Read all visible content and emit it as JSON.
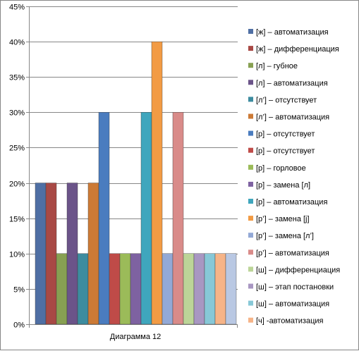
{
  "chart_data": {
    "type": "bar",
    "categories": [
      "Диаграмма 12"
    ],
    "ylim": [
      0,
      45
    ],
    "y_ticks": [
      "0%",
      "5%",
      "10%",
      "15%",
      "20%",
      "25%",
      "30%",
      "35%",
      "40%",
      "45%"
    ],
    "y_tick_values": [
      0,
      5,
      10,
      15,
      20,
      25,
      30,
      35,
      40,
      45
    ],
    "grid": "horizontal",
    "legend_position": "right",
    "title": "",
    "xlabel": "",
    "ylabel": "",
    "series": [
      {
        "name": "[ж] – автоматизация",
        "values": [
          20
        ],
        "color": "#4F6FA4"
      },
      {
        "name": "[ж] –  дифференциация",
        "values": [
          20
        ],
        "color": "#A84945"
      },
      {
        "name": "[л] – губное",
        "values": [
          10
        ],
        "color": "#87A052"
      },
      {
        "name": "[л] – автоматизация",
        "values": [
          20
        ],
        "color": "#6B5489"
      },
      {
        "name": "[л’] – отсутствует",
        "values": [
          10
        ],
        "color": "#3D8C9F"
      },
      {
        "name": "[л’] – автоматизация",
        "values": [
          20
        ],
        "color": "#CC7A36"
      },
      {
        "name": "[р] – отсутствует",
        "values": [
          30
        ],
        "color": "#4A7CBF"
      },
      {
        "name": "[р] – отсутствует",
        "values": [
          10
        ],
        "color": "#BF4B48"
      },
      {
        "name": "[р] – горловое",
        "values": [
          10
        ],
        "color": "#9BBB59"
      },
      {
        "name": "[р] – замена [л]",
        "values": [
          10
        ],
        "color": "#7E62A1"
      },
      {
        "name": "[р] – автоматизация",
        "values": [
          30
        ],
        "color": "#3FA6BD"
      },
      {
        "name": "[р’] – замена [j]",
        "values": [
          40
        ],
        "color": "#F29B44"
      },
      {
        "name": "[р’] – замена [л’]",
        "values": [
          10
        ],
        "color": "#93A9D6"
      },
      {
        "name": "[р’] – автоматизация",
        "values": [
          30
        ],
        "color": "#D98B89"
      },
      {
        "name": "[ш] – дифференциация",
        "values": [
          10
        ],
        "color": "#BCD598"
      },
      {
        "name": "[ш] – этап постановки",
        "values": [
          10
        ],
        "color": "#A897C2"
      },
      {
        "name": "[ш] – автоматизация",
        "values": [
          10
        ],
        "color": "#87C8D7"
      },
      {
        "name": "[ч] -автоматизация",
        "values": [
          10
        ],
        "color": "#F6B488"
      },
      {
        "name": "",
        "values": [
          10
        ],
        "color": "#B9C8E3"
      }
    ]
  }
}
